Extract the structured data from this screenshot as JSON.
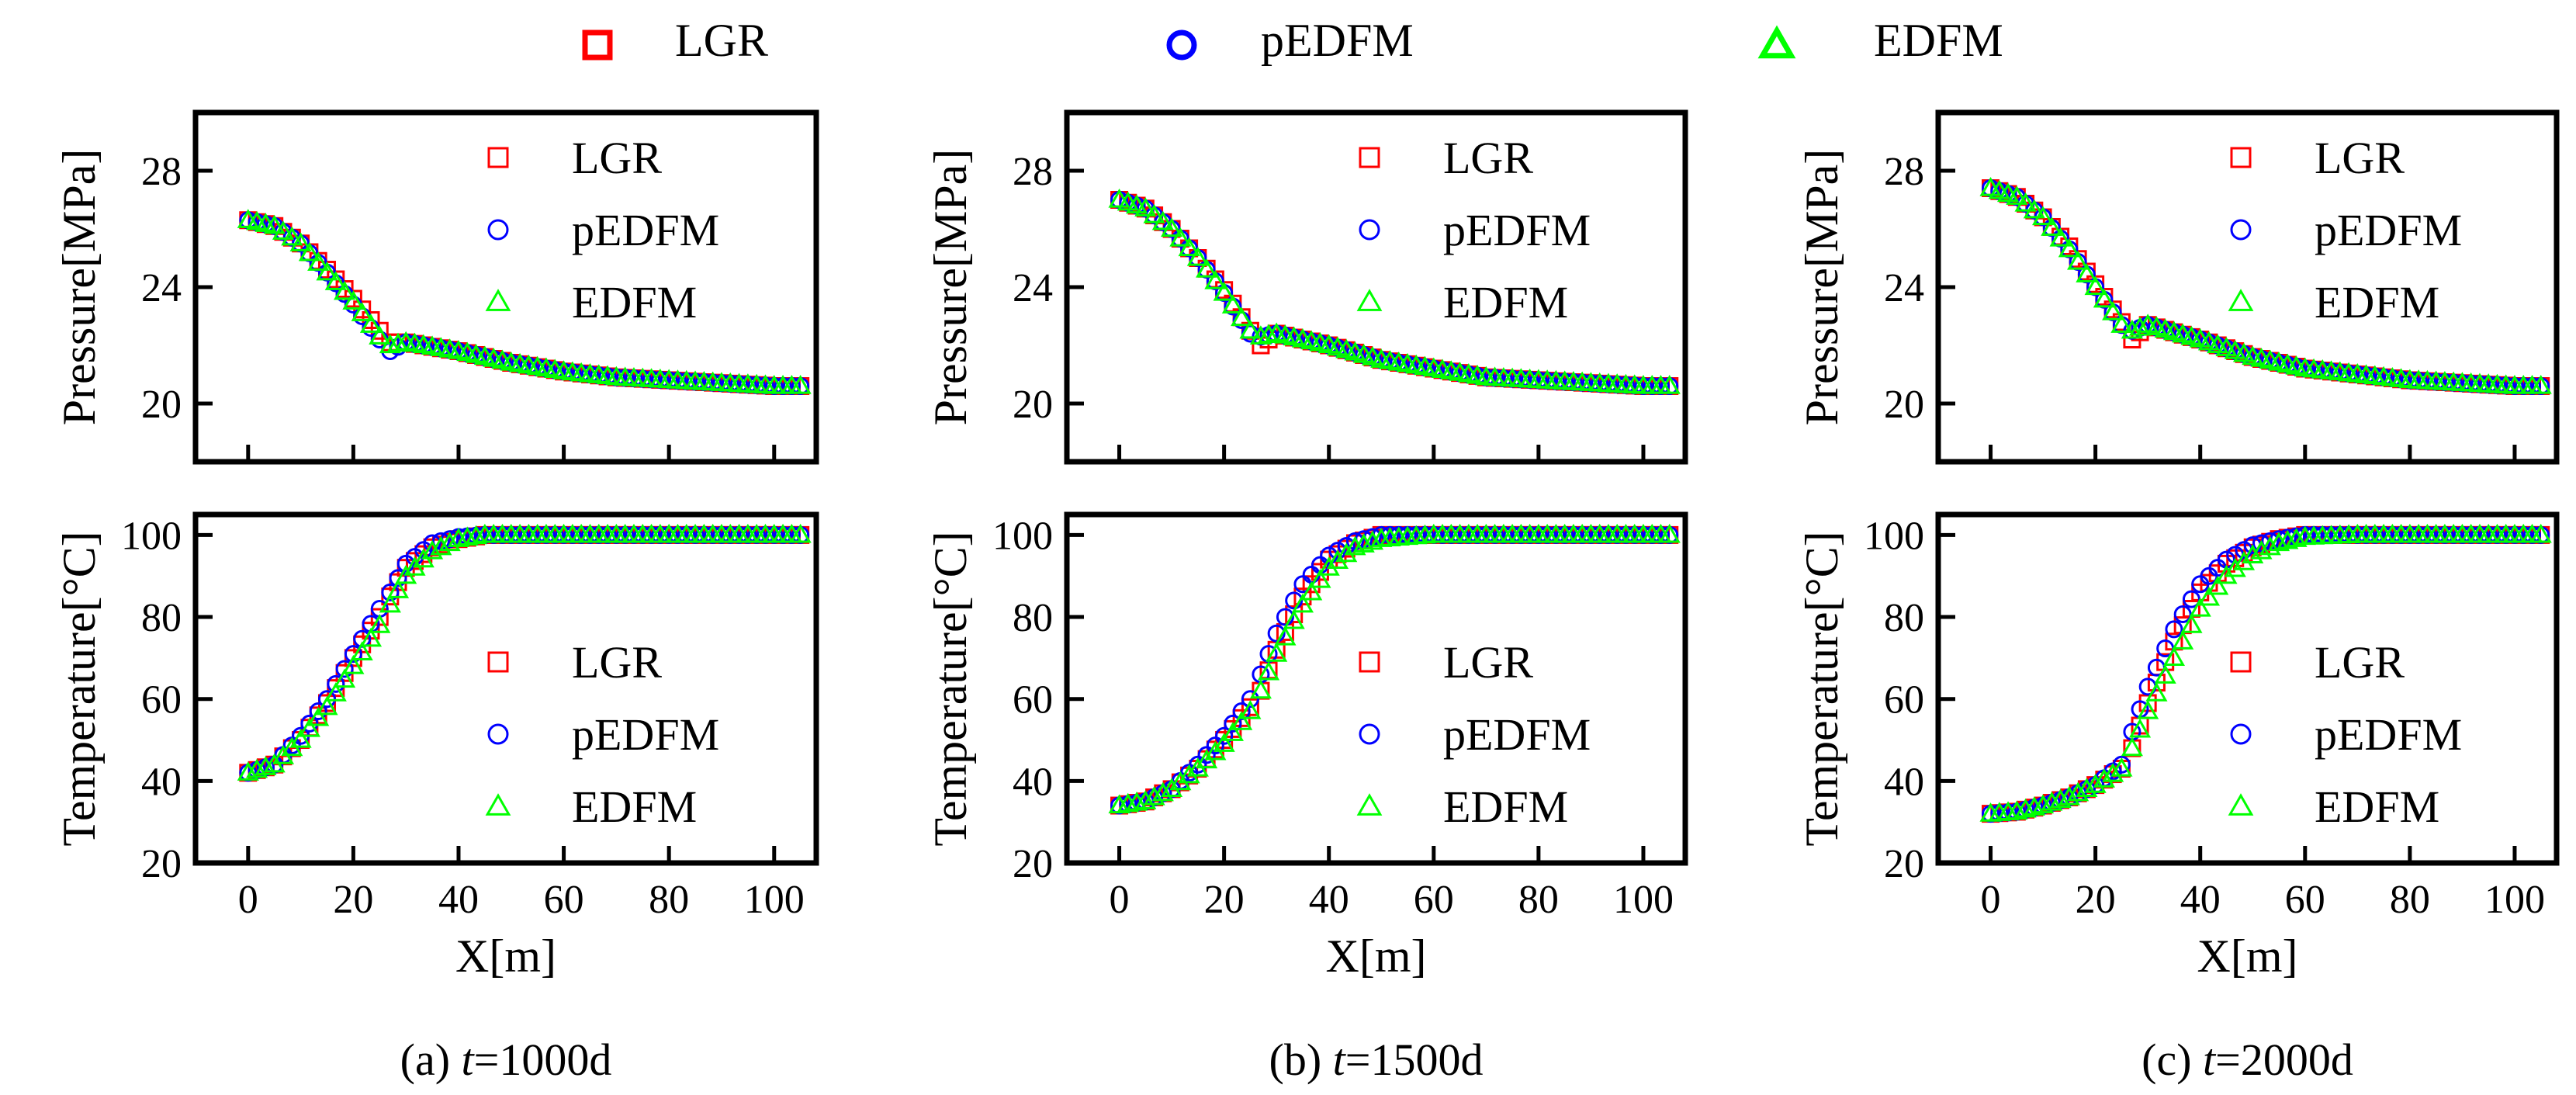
{
  "figure": {
    "legend_entries": [
      {
        "label": "LGR",
        "marker": "square",
        "color": "#ff0000"
      },
      {
        "label": "pEDFM",
        "marker": "circle",
        "color": "#0000ff"
      },
      {
        "label": "EDFM",
        "marker": "triangle",
        "color": "#00ff00"
      }
    ]
  },
  "chart_data": [
    {
      "type": "scatter",
      "panel": "a",
      "caption": "(a) t=1000d",
      "caption_prefix": "(a) ",
      "caption_var": "t",
      "caption_value": "=1000d",
      "xlabel": "X[m]",
      "ylabel": "Pressure[MPa]",
      "xlim": [
        -10,
        108
      ],
      "ylim": [
        18,
        30
      ],
      "xticks": [
        "0",
        "20",
        "40",
        "60",
        "80",
        "100"
      ],
      "yticks": [
        "20",
        "24",
        "28"
      ],
      "legend": [
        "LGR",
        "pEDFM",
        "EDFM"
      ],
      "legend_position": "top-right",
      "series": [
        {
          "name": "LGR",
          "x": [
            0,
            5,
            10,
            15,
            20,
            25,
            27,
            30,
            40,
            50,
            60,
            70,
            80,
            90,
            100,
            105
          ],
          "values": [
            26.3,
            26.1,
            25.5,
            24.6,
            23.6,
            22.5,
            22.1,
            22.1,
            21.8,
            21.4,
            21.1,
            20.9,
            20.8,
            20.7,
            20.6,
            20.6
          ]
        },
        {
          "name": "pEDFM",
          "x": [
            0,
            5,
            10,
            15,
            20,
            25,
            27,
            30,
            40,
            50,
            60,
            70,
            80,
            90,
            100,
            105
          ],
          "values": [
            26.3,
            26.1,
            25.5,
            24.5,
            23.4,
            22.2,
            21.8,
            22.1,
            21.8,
            21.4,
            21.1,
            20.9,
            20.8,
            20.7,
            20.6,
            20.6
          ]
        },
        {
          "name": "EDFM",
          "x": [
            0,
            5,
            10,
            15,
            20,
            25,
            27,
            30,
            40,
            50,
            60,
            70,
            80,
            90,
            100,
            105
          ],
          "values": [
            26.3,
            26.1,
            25.5,
            24.5,
            23.5,
            22.3,
            22.0,
            22.1,
            21.8,
            21.4,
            21.1,
            20.9,
            20.8,
            20.7,
            20.6,
            20.6
          ]
        }
      ]
    },
    {
      "type": "scatter",
      "panel": "b",
      "caption": "(b) t=1500d",
      "caption_prefix": "(b) ",
      "caption_var": "t",
      "caption_value": "=1500d",
      "xlabel": "X[m]",
      "ylabel": "Pressure[MPa]",
      "xlim": [
        -10,
        108
      ],
      "ylim": [
        18,
        30
      ],
      "xticks": [
        "0",
        "20",
        "40",
        "60",
        "80",
        "100"
      ],
      "yticks": [
        "20",
        "24",
        "28"
      ],
      "legend": [
        "LGR",
        "pEDFM",
        "EDFM"
      ],
      "legend_position": "top-right",
      "series": [
        {
          "name": "LGR",
          "x": [
            0,
            5,
            10,
            15,
            20,
            25,
            27,
            30,
            40,
            50,
            60,
            70,
            80,
            90,
            100,
            105
          ],
          "values": [
            27.0,
            26.7,
            26.0,
            25.0,
            23.9,
            22.5,
            22.0,
            22.4,
            22.0,
            21.5,
            21.2,
            20.9,
            20.8,
            20.7,
            20.6,
            20.6
          ]
        },
        {
          "name": "pEDFM",
          "x": [
            0,
            5,
            10,
            15,
            20,
            25,
            27,
            30,
            40,
            50,
            60,
            70,
            80,
            90,
            100,
            105
          ],
          "values": [
            27.0,
            26.7,
            26.0,
            25.0,
            23.8,
            22.4,
            22.3,
            22.4,
            22.0,
            21.5,
            21.2,
            20.9,
            20.8,
            20.7,
            20.6,
            20.6
          ]
        },
        {
          "name": "EDFM",
          "x": [
            0,
            5,
            10,
            15,
            20,
            25,
            27,
            30,
            40,
            50,
            60,
            70,
            80,
            90,
            100,
            105
          ],
          "values": [
            27.0,
            26.7,
            26.0,
            25.0,
            23.8,
            22.5,
            22.3,
            22.4,
            22.0,
            21.5,
            21.2,
            20.9,
            20.8,
            20.7,
            20.6,
            20.6
          ]
        }
      ]
    },
    {
      "type": "scatter",
      "panel": "c",
      "caption": "(c) t=2000d",
      "caption_prefix": "(c) ",
      "caption_var": "t",
      "caption_value": "=2000d",
      "xlabel": "X[m]",
      "ylabel": "Pressure[MPa]",
      "xlim": [
        -10,
        108
      ],
      "ylim": [
        18,
        30
      ],
      "xticks": [
        "0",
        "20",
        "40",
        "60",
        "80",
        "100"
      ],
      "yticks": [
        "20",
        "24",
        "28"
      ],
      "legend": [
        "LGR",
        "pEDFM",
        "EDFM"
      ],
      "legend_position": "top-right",
      "series": [
        {
          "name": "LGR",
          "x": [
            0,
            5,
            10,
            15,
            20,
            25,
            27,
            30,
            40,
            50,
            60,
            70,
            80,
            90,
            100,
            105
          ],
          "values": [
            27.4,
            27.1,
            26.4,
            25.4,
            24.1,
            22.8,
            22.2,
            22.7,
            22.2,
            21.6,
            21.2,
            21.0,
            20.8,
            20.7,
            20.6,
            20.6
          ]
        },
        {
          "name": "pEDFM",
          "x": [
            0,
            5,
            10,
            15,
            20,
            25,
            27,
            30,
            40,
            50,
            60,
            70,
            80,
            90,
            100,
            105
          ],
          "values": [
            27.4,
            27.1,
            26.4,
            25.3,
            24.0,
            22.7,
            22.5,
            22.7,
            22.2,
            21.6,
            21.2,
            21.0,
            20.8,
            20.7,
            20.6,
            20.6
          ]
        },
        {
          "name": "EDFM",
          "x": [
            0,
            5,
            10,
            15,
            20,
            25,
            27,
            30,
            40,
            50,
            60,
            70,
            80,
            90,
            100,
            105
          ],
          "values": [
            27.4,
            27.1,
            26.4,
            25.3,
            24.0,
            22.7,
            22.5,
            22.7,
            22.2,
            21.6,
            21.2,
            21.0,
            20.8,
            20.7,
            20.6,
            20.6
          ]
        }
      ]
    },
    {
      "type": "scatter",
      "panel": "a",
      "xlabel": "X[m]",
      "ylabel": "Temperature[°C]",
      "xlim": [
        -10,
        108
      ],
      "ylim": [
        20,
        105
      ],
      "xticks": [
        "0",
        "20",
        "40",
        "60",
        "80",
        "100"
      ],
      "yticks": [
        "20",
        "40",
        "60",
        "80",
        "100"
      ],
      "legend": [
        "LGR",
        "pEDFM",
        "EDFM"
      ],
      "legend_position": "bottom-right",
      "series": [
        {
          "name": "LGR",
          "x": [
            0,
            5,
            10,
            15,
            20,
            25,
            27,
            30,
            35,
            40,
            45,
            50,
            60,
            70,
            80,
            90,
            100,
            105
          ],
          "values": [
            42,
            44,
            50,
            59,
            70,
            80,
            85,
            92,
            97,
            99,
            100,
            100,
            100,
            100,
            100,
            100,
            100,
            100
          ]
        },
        {
          "name": "pEDFM",
          "x": [
            0,
            5,
            10,
            15,
            20,
            25,
            27,
            30,
            35,
            40,
            45,
            50,
            60,
            70,
            80,
            90,
            100,
            105
          ],
          "values": [
            42,
            44,
            51,
            60,
            71,
            82,
            86,
            93,
            98,
            99.5,
            100,
            100,
            100,
            100,
            100,
            100,
            100,
            100
          ]
        },
        {
          "name": "EDFM",
          "x": [
            0,
            5,
            10,
            15,
            20,
            25,
            27,
            30,
            35,
            40,
            45,
            50,
            60,
            70,
            80,
            90,
            100,
            105
          ],
          "values": [
            42,
            44,
            50,
            58,
            68,
            78,
            83,
            90,
            96,
            99,
            100,
            100,
            100,
            100,
            100,
            100,
            100,
            100
          ]
        }
      ]
    },
    {
      "type": "scatter",
      "panel": "b",
      "xlabel": "X[m]",
      "ylabel": "Temperature[°C]",
      "xlim": [
        -10,
        108
      ],
      "ylim": [
        20,
        105
      ],
      "xticks": [
        "0",
        "20",
        "40",
        "60",
        "80",
        "100"
      ],
      "yticks": [
        "20",
        "40",
        "60",
        "80",
        "100"
      ],
      "legend": [
        "LGR",
        "pEDFM",
        "EDFM"
      ],
      "legend_position": "bottom-right",
      "series": [
        {
          "name": "LGR",
          "x": [
            0,
            5,
            10,
            15,
            20,
            25,
            27,
            30,
            35,
            40,
            45,
            50,
            60,
            70,
            80,
            90,
            100,
            105
          ],
          "values": [
            34,
            35,
            38,
            43,
            50,
            58,
            62,
            72,
            85,
            94,
            98,
            100,
            100,
            100,
            100,
            100,
            100,
            100
          ]
        },
        {
          "name": "pEDFM",
          "x": [
            0,
            5,
            10,
            15,
            20,
            25,
            27,
            30,
            35,
            40,
            45,
            50,
            60,
            70,
            80,
            90,
            100,
            105
          ],
          "values": [
            34,
            35,
            38,
            44,
            51,
            60,
            66,
            76,
            88,
            95,
            98.5,
            100,
            100,
            100,
            100,
            100,
            100,
            100
          ]
        },
        {
          "name": "EDFM",
          "x": [
            0,
            5,
            10,
            15,
            20,
            25,
            27,
            30,
            35,
            40,
            45,
            50,
            60,
            70,
            80,
            90,
            100,
            105
          ],
          "values": [
            34,
            35,
            38,
            43,
            49,
            57,
            62,
            71,
            83,
            92,
            97,
            99,
            100,
            100,
            100,
            100,
            100,
            100
          ]
        }
      ]
    },
    {
      "type": "scatter",
      "panel": "c",
      "xlabel": "X[m]",
      "ylabel": "Temperature[°C]",
      "xlim": [
        -10,
        108
      ],
      "ylim": [
        20,
        105
      ],
      "xticks": [
        "0",
        "20",
        "40",
        "60",
        "80",
        "100"
      ],
      "yticks": [
        "20",
        "40",
        "60",
        "80",
        "100"
      ],
      "legend": [
        "LGR",
        "pEDFM",
        "EDFM"
      ],
      "legend_position": "bottom-right",
      "series": [
        {
          "name": "LGR",
          "x": [
            0,
            5,
            10,
            15,
            20,
            25,
            27,
            30,
            35,
            40,
            45,
            50,
            55,
            60,
            70,
            80,
            90,
            100,
            105
          ],
          "values": [
            32,
            32.5,
            34,
            36,
            39,
            43,
            48,
            59,
            74,
            86,
            93,
            97,
            99,
            100,
            100,
            100,
            100,
            100,
            100
          ]
        },
        {
          "name": "pEDFM",
          "x": [
            0,
            5,
            10,
            15,
            20,
            25,
            27,
            30,
            35,
            40,
            45,
            50,
            55,
            60,
            70,
            80,
            90,
            100,
            105
          ],
          "values": [
            32,
            32.5,
            34,
            36,
            39,
            44,
            52,
            63,
            77,
            88,
            94,
            97.5,
            99,
            100,
            100,
            100,
            100,
            100,
            100
          ]
        },
        {
          "name": "EDFM",
          "x": [
            0,
            5,
            10,
            15,
            20,
            25,
            27,
            30,
            35,
            40,
            45,
            50,
            55,
            60,
            70,
            80,
            90,
            100,
            105
          ],
          "values": [
            32,
            32.5,
            34,
            36,
            39,
            43,
            48,
            57,
            70,
            82,
            90,
            95,
            98,
            99.5,
            100,
            100,
            100,
            100,
            100
          ]
        }
      ]
    }
  ]
}
